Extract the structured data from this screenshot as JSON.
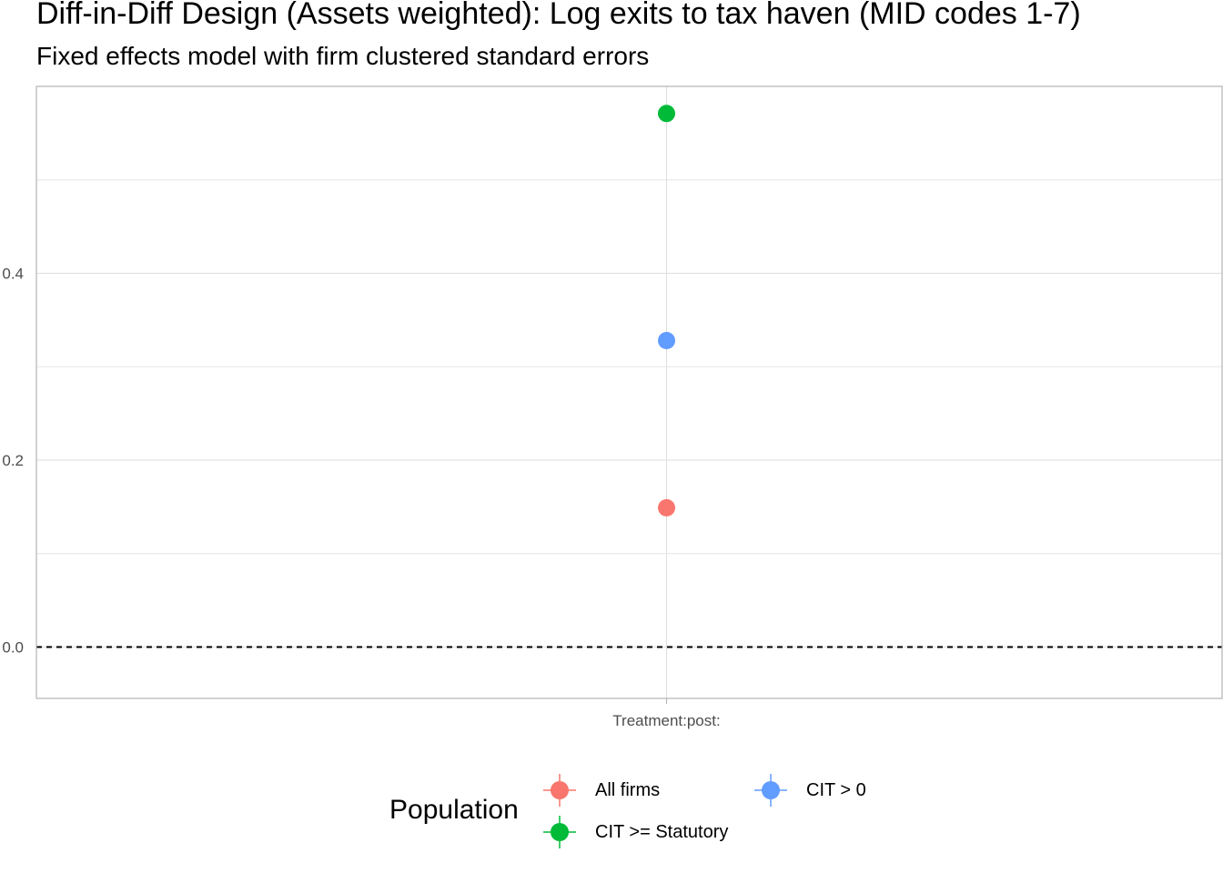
{
  "chart_data": {
    "type": "scatter",
    "title": "Diff-in-Diff Design (Assets weighted): Log exits to tax haven (MID codes 1-7)",
    "subtitle": "Fixed effects model with firm clustered standard errors",
    "xlabel": "",
    "ylabel": "",
    "categories": [
      "Treatment:post:"
    ],
    "ylim": [
      -0.055,
      0.6
    ],
    "yticks": [
      0.0,
      0.2,
      0.4
    ],
    "grid": true,
    "reference_line": {
      "y": 0.0,
      "style": "dashed"
    },
    "series": [
      {
        "name": "All firms",
        "color": "#F8766D",
        "values": [
          0.149
        ]
      },
      {
        "name": "CIT >= Statutory",
        "color": "#00BA38",
        "values": [
          0.571
        ]
      },
      {
        "name": "CIT > 0",
        "color": "#619CFF",
        "values": [
          0.328
        ]
      }
    ],
    "legend": {
      "title": "Population",
      "position": "bottom"
    }
  }
}
